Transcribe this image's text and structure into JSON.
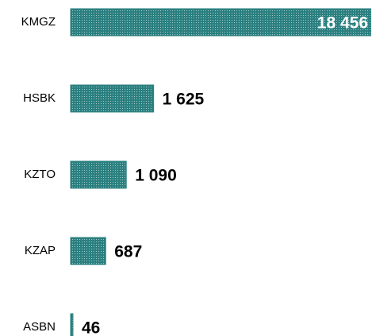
{
  "chart_data": {
    "type": "bar",
    "orientation": "horizontal",
    "categories": [
      "KMGZ",
      "HSBK",
      "KZTO",
      "KZAP",
      "ASBN"
    ],
    "values": [
      18456,
      1625,
      1090,
      687,
      46
    ],
    "value_labels": [
      "18 456",
      "1 625",
      "1 090",
      "687",
      "46"
    ],
    "color": "#2b7f7f",
    "xlim": [
      0,
      5900
    ]
  }
}
